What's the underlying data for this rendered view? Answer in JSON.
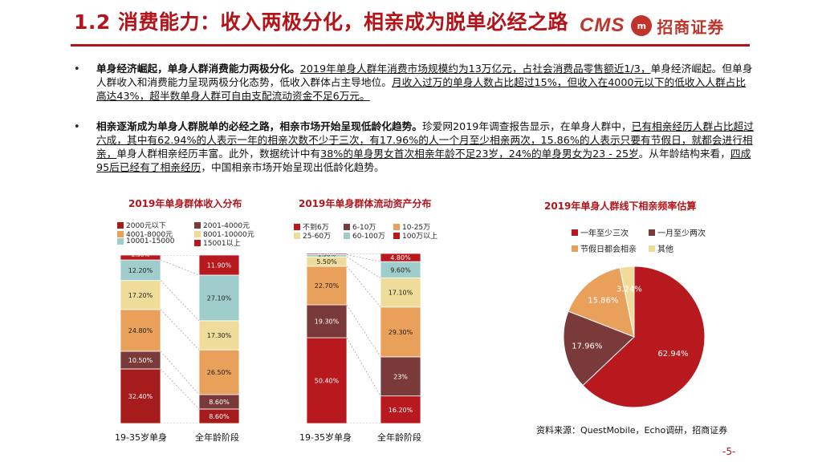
{
  "header": {
    "title": "1.2 消费能力：收入两极分化，相亲成为脱单必经之路",
    "logo_cms": "CMS",
    "logo_text": "招商证券"
  },
  "bullets": [
    {
      "bold": "单身经济崛起，单身人群消费能力两极分化。",
      "parts": [
        {
          "t": "2019年单身人群年消费市场规模约为13万亿元，占社会消费品零售额近1/3，",
          "u": true
        },
        {
          "t": "单身经济崛起。但单身人群收入和消费能力呈现两极分化态势，低收入群体占主导地位。",
          "u": false
        },
        {
          "t": "月收入过万的单身人数占比超过15%，但收入在4000元以下的低收入人群占比高达43%，超半数单身人群可自由支配流动资金不足6万元。",
          "u": true
        }
      ]
    },
    {
      "bold": "相亲逐渐成为单身人群脱单的必经之路，相亲市场开始呈现低龄化趋势。",
      "parts": [
        {
          "t": "珍爱网2019年调查报告显示，在单身人群中，",
          "u": false
        },
        {
          "t": "已有相亲经历人群占比超过六成，其中有62.94%的人表示一年的相亲次数不少于三次，有17.96%的人一个月至少相亲两次，15.86%的人表示只要有节假日，就都会进行相亲，",
          "u": true
        },
        {
          "t": "单身人群相亲经历丰富。此外，数据统计中有",
          "u": false
        },
        {
          "t": "38%的单身男女首次相亲年龄不足23岁，24%的单身男女为23 - 25岁",
          "u": true
        },
        {
          "t": "。从年龄结构来看，",
          "u": false
        },
        {
          "t": "四成95后已经有了相亲经历",
          "u": true
        },
        {
          "t": "，中国相亲市场开始呈现出低龄化趋势。",
          "u": false
        }
      ]
    }
  ],
  "charts": {
    "income": {
      "title": "2019年单身群体收入分布",
      "legend": [
        "2000元以下",
        "2001-4000元",
        "4001-8000元",
        "8001-10000元",
        "10001-15000",
        "15001以上"
      ],
      "colors": [
        "#a61b1b",
        "#7a3a3a",
        "#e8a05a",
        "#f0dc9a",
        "#9fcdcb",
        "#b8191f"
      ],
      "label_colors": [
        "#ffffff",
        "#ffffff",
        "#222222",
        "#222222",
        "#222222",
        "#ffffff"
      ],
      "categories": [
        "19-35岁单身",
        "全年龄阶段"
      ],
      "series": [
        [
          32.4,
          8.6
        ],
        [
          10.5,
          8.6
        ],
        [
          24.8,
          26.5
        ],
        [
          17.2,
          17.3
        ],
        [
          12.2,
          27.1
        ],
        [
          2.9,
          11.9
        ]
      ],
      "labels": [
        [
          "32.40%",
          "8.60%"
        ],
        [
          "10.50%",
          "8.60%"
        ],
        [
          "24.80%",
          "26.50%"
        ],
        [
          "17.20%",
          "17.30%"
        ],
        [
          "12.20%",
          "27.10%"
        ],
        [
          "2.90%",
          "11.90%"
        ]
      ]
    },
    "assets": {
      "title": "2019年单身群体流动资产分布",
      "legend": [
        "不到6万",
        "6-10万",
        "10-25万",
        "25-60万",
        "60-100万",
        "100万以上"
      ],
      "colors": [
        "#b8191f",
        "#7a3a3a",
        "#e8a05a",
        "#f0dc9a",
        "#9fcdcb",
        "#b8191f"
      ],
      "label_colors": [
        "#ffffff",
        "#ffffff",
        "#222222",
        "#222222",
        "#222222",
        "#ffffff"
      ],
      "categories": [
        "19-35岁单身",
        "全年龄阶段"
      ],
      "series": [
        [
          50.4,
          16.2
        ],
        [
          19.3,
          23
        ],
        [
          22.7,
          29.3
        ],
        [
          5.5,
          17.1
        ],
        [
          1.3,
          9.6
        ],
        [
          0.7,
          4.8
        ]
      ],
      "labels": [
        [
          "50.40%",
          "16.20%"
        ],
        [
          "19.30%",
          "23%"
        ],
        [
          "22.70%",
          "29.30%"
        ],
        [
          "5.50%",
          "17.10%"
        ],
        [
          "1.30%",
          "9.60%"
        ],
        [
          "0.70%",
          "4.80%"
        ]
      ]
    },
    "pie": {
      "title": "2019年单身人群线下相亲频率估算",
      "legend": [
        "一年至少三次",
        "一月至少两次",
        "节假日都会相亲",
        "其他"
      ],
      "colors": [
        "#b8191f",
        "#7a3a3a",
        "#e8a05a",
        "#f0dc9a"
      ],
      "values": [
        62.94,
        17.96,
        15.86,
        3.24
      ],
      "labels": [
        "62.94%",
        "17.96%",
        "15.86%",
        "3.24%"
      ]
    }
  },
  "source": "资料来源：QuestMobile，Echo调研，招商证券",
  "page_number": "-5-"
}
